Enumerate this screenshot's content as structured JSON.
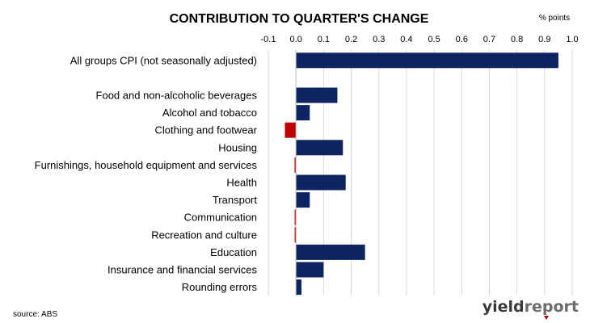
{
  "chart_data": {
    "type": "bar",
    "orientation": "horizontal",
    "title": "CONTRIBUTION TO QUARTER'S CHANGE",
    "unit_label": "% points",
    "xlim": [
      -0.1,
      1.0
    ],
    "ticks": [
      "-0.1",
      "0.0",
      "0.1",
      "0.2",
      "0.3",
      "0.4",
      "0.5",
      "0.6",
      "0.7",
      "0.8",
      "0.9",
      "1.0"
    ],
    "tick_values": [
      -0.1,
      0.0,
      0.1,
      0.2,
      0.3,
      0.4,
      0.5,
      0.6,
      0.7,
      0.8,
      0.9,
      1.0
    ],
    "categories": [
      "All groups CPI (not seasonally adjusted)",
      "",
      "Food and non-alcoholic beverages",
      "Alcohol and tobacco",
      "Clothing and footwear",
      "Housing",
      "Furnishings, household equipment and services",
      "Health",
      "Transport",
      "Communication",
      "Recreation and culture",
      "Education",
      "Insurance and financial services",
      "Rounding errors"
    ],
    "values": [
      0.95,
      null,
      0.15,
      0.05,
      -0.04,
      0.17,
      -0.005,
      0.18,
      0.05,
      -0.003,
      -0.003,
      0.25,
      0.1,
      0.02
    ],
    "gridlines": "vertical",
    "colors": {
      "positive": "#0c2461",
      "negative": "#c00000",
      "grid": "#d9d9d9"
    }
  },
  "footer": {
    "source": "source: ABS",
    "logo_text": "yieldreport",
    "logo_colors": {
      "yield": "#3a3a3a",
      "report": "#6d6d6d",
      "accent": "#c00000"
    }
  }
}
